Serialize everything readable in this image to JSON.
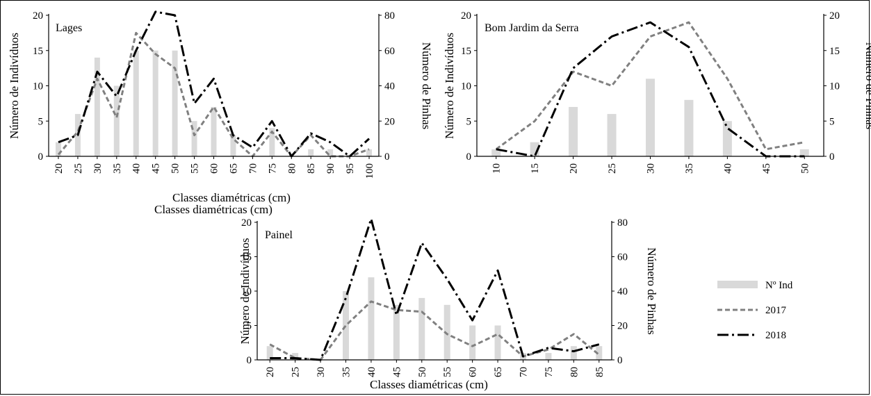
{
  "chart_data": [
    {
      "type": "bar",
      "title": "Lages",
      "xlabel": "Classes diamétricas  (cm)",
      "ylabel": "Número de Indivíduos",
      "y2label": "Número de Pinhas",
      "ylim": [
        0,
        20
      ],
      "y2lim": [
        0,
        80
      ],
      "yticks": [
        "0",
        "5",
        "10",
        "15",
        "20"
      ],
      "y2ticks": [
        "0",
        "20",
        "40",
        "60",
        "80"
      ],
      "categories": [
        "20",
        "25",
        "30",
        "35",
        "40",
        "45",
        "50",
        "55",
        "60",
        "65",
        "70",
        "75",
        "80",
        "85",
        "90",
        "95",
        "100"
      ],
      "series": [
        {
          "name": "Nº Ind",
          "axis": "left",
          "kind": "bar",
          "values": [
            2,
            6,
            14,
            10,
            15,
            15,
            15,
            5,
            7,
            3,
            0,
            4,
            0,
            1,
            1,
            0,
            1
          ]
        },
        {
          "name": "2017",
          "axis": "right",
          "kind": "line",
          "values": [
            1,
            14,
            44,
            22,
            70,
            58,
            50,
            12,
            28,
            10,
            0,
            14,
            0,
            12,
            0,
            0,
            4
          ]
        },
        {
          "name": "2018",
          "axis": "right",
          "kind": "line",
          "values": [
            8,
            12,
            48,
            34,
            60,
            82,
            80,
            30,
            44,
            12,
            5,
            20,
            0,
            13,
            8,
            0,
            10
          ]
        }
      ]
    },
    {
      "type": "bar",
      "title": "Bom Jardim da Serra",
      "xlabel": "Classes diamétricas  (cm)",
      "ylabel": "Número de Indivíduos",
      "y2label": "Número de Pinhas",
      "ylim": [
        0,
        20
      ],
      "y2lim": [
        0,
        20
      ],
      "yticks": [
        "0",
        "5",
        "10",
        "15",
        "20"
      ],
      "y2ticks": [
        "0",
        "5",
        "10",
        "15",
        "20"
      ],
      "categories": [
        "10",
        "15",
        "20",
        "25",
        "30",
        "35",
        "40",
        "45",
        "50"
      ],
      "series": [
        {
          "name": "Nº Ind",
          "axis": "left",
          "kind": "bar",
          "values": [
            1,
            2,
            7,
            6,
            11,
            8,
            5,
            0,
            1
          ]
        },
        {
          "name": "2017",
          "axis": "right",
          "kind": "line",
          "values": [
            1,
            5,
            12,
            10,
            17,
            19,
            11,
            1,
            2
          ]
        },
        {
          "name": "2018",
          "axis": "right",
          "kind": "line",
          "values": [
            1,
            0,
            12.5,
            17,
            19,
            15.5,
            4,
            0,
            0
          ]
        }
      ]
    },
    {
      "type": "bar",
      "title": "Painel",
      "xlabel": "Classes diamétricas  (cm)",
      "ylabel": "Número de Indivíduos",
      "y2label": "Número de Pinhas",
      "ylim": [
        0,
        20
      ],
      "y2lim": [
        0,
        80
      ],
      "yticks": [
        "0",
        "5",
        "10",
        "15",
        "20"
      ],
      "y2ticks": [
        "0",
        "20",
        "40",
        "60",
        "80"
      ],
      "categories": [
        "20",
        "25",
        "30",
        "35",
        "40",
        "45",
        "50",
        "55",
        "60",
        "65",
        "70",
        "75",
        "80",
        "85"
      ],
      "series": [
        {
          "name": "Nº Ind",
          "axis": "left",
          "kind": "bar",
          "values": [
            2,
            1,
            0,
            10,
            12,
            8,
            9,
            8,
            5,
            5,
            1,
            1,
            2,
            2
          ]
        },
        {
          "name": "2017",
          "axis": "right",
          "kind": "line",
          "values": [
            9,
            1,
            0,
            20,
            34,
            29,
            28,
            15,
            8,
            15,
            2,
            6,
            15,
            3
          ]
        },
        {
          "name": "2018",
          "axis": "right",
          "kind": "line",
          "values": [
            1,
            1,
            0,
            36,
            82,
            26,
            68,
            47,
            23,
            52,
            2,
            7,
            5,
            9
          ]
        }
      ]
    }
  ],
  "legend": {
    "items": [
      {
        "label": "Nº Ind",
        "kind": "bar"
      },
      {
        "label": "2017",
        "kind": "dash"
      },
      {
        "label": "2018",
        "kind": "dashdot"
      }
    ]
  },
  "colors": {
    "bar": "#d9d9d9",
    "line_2017": "#808080",
    "line_2018": "#000000",
    "axis": "#000000"
  }
}
